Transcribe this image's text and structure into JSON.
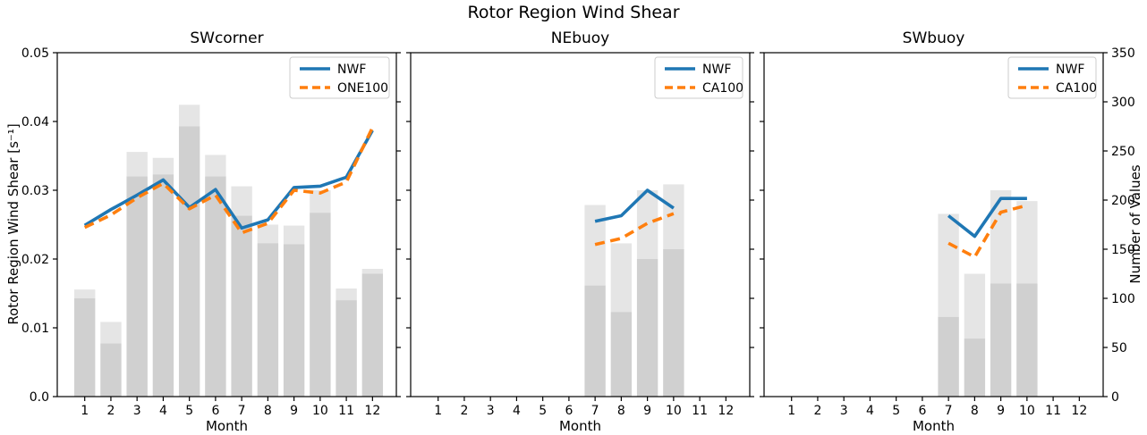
{
  "figure": {
    "title": "Rotor Region Wind Shear",
    "background": "#ffffff"
  },
  "colors": {
    "nwf_line": "#1f77b4",
    "model_line": "#ff7f0e",
    "bar_fill": "#7f7f7f",
    "bar_alpha": 0.2,
    "spine": "#000000",
    "legend_border": "#cccccc"
  },
  "axes": {
    "xlabel": "Month",
    "ylabel_left": "Rotor Region Wind Shear [s⁻¹]",
    "ylabel_right": "Number of Values",
    "ylim_left": [
      0,
      0.05
    ],
    "ylim_right": [
      0,
      350
    ],
    "yticks_left": [
      "0.05",
      "0.04",
      "0.03",
      "0.02",
      "0.01",
      "0.0"
    ],
    "yticks_right": [
      "350",
      "300",
      "250",
      "200",
      "150",
      "100",
      "50",
      "0"
    ],
    "xticks": [
      "1",
      "2",
      "3",
      "4",
      "5",
      "6",
      "7",
      "8",
      "9",
      "10",
      "11",
      "12"
    ],
    "grid": false
  },
  "chart_data": [
    {
      "type": "line+bar",
      "title": "SWcorner",
      "x": [
        1,
        2,
        3,
        4,
        5,
        6,
        7,
        8,
        9,
        10,
        11,
        12
      ],
      "series": [
        {
          "name": "NWF",
          "style": "solid",
          "color": "#1f77b4",
          "axis": "left",
          "values": [
            0.0249,
            0.0272,
            0.0293,
            0.0315,
            0.0275,
            0.0301,
            0.0245,
            0.0257,
            0.0304,
            0.0306,
            0.0319,
            0.0387
          ]
        },
        {
          "name": "ONE100",
          "style": "dashed",
          "color": "#ff7f0e",
          "axis": "left",
          "values": [
            0.0246,
            0.0264,
            0.0289,
            0.031,
            0.0273,
            0.0293,
            0.0238,
            0.0252,
            0.03,
            0.0296,
            0.0312,
            0.0391
          ]
        }
      ],
      "bars": {
        "axis": "right",
        "months": [
          1,
          2,
          3,
          4,
          5,
          6,
          7,
          8,
          9,
          10,
          11,
          12
        ],
        "count_light_top": [
          109,
          76,
          249,
          243,
          297,
          246,
          214,
          175,
          174,
          210,
          110,
          130
        ],
        "count_dark_overlap": [
          100,
          54,
          224,
          226,
          275,
          224,
          184,
          156,
          155,
          187,
          98,
          125
        ]
      },
      "legend": [
        "NWF",
        "ONE100"
      ]
    },
    {
      "type": "line+bar",
      "title": "NEbuoy",
      "x": [
        7,
        8,
        9,
        10
      ],
      "series": [
        {
          "name": "NWF",
          "style": "solid",
          "color": "#1f77b4",
          "axis": "left",
          "values": [
            0.0255,
            0.0263,
            0.03,
            0.0274
          ]
        },
        {
          "name": "CA100",
          "style": "dashed",
          "color": "#ff7f0e",
          "axis": "left",
          "values": [
            0.0221,
            0.023,
            0.0252,
            0.0266
          ]
        }
      ],
      "bars": {
        "axis": "right",
        "months": [
          7,
          8,
          9,
          10
        ],
        "count_light_top": [
          195,
          156,
          210,
          216
        ],
        "count_dark_overlap": [
          113,
          86,
          140,
          150
        ]
      },
      "legend": [
        "NWF",
        "CA100"
      ]
    },
    {
      "type": "line+bar",
      "title": "SWbuoy",
      "x": [
        7,
        8,
        9,
        10
      ],
      "series": [
        {
          "name": "NWF",
          "style": "solid",
          "color": "#1f77b4",
          "axis": "left",
          "values": [
            0.0263,
            0.0233,
            0.0288,
            0.0288
          ]
        },
        {
          "name": "CA100",
          "style": "dashed",
          "color": "#ff7f0e",
          "axis": "left",
          "values": [
            0.0223,
            0.0203,
            0.0268,
            0.0278
          ]
        }
      ],
      "bars": {
        "axis": "right",
        "months": [
          7,
          8,
          9,
          10
        ],
        "count_light_top": [
          186,
          125,
          210,
          199
        ],
        "count_dark_overlap": [
          81,
          59,
          115,
          115
        ]
      },
      "legend": [
        "NWF",
        "CA100"
      ]
    }
  ]
}
